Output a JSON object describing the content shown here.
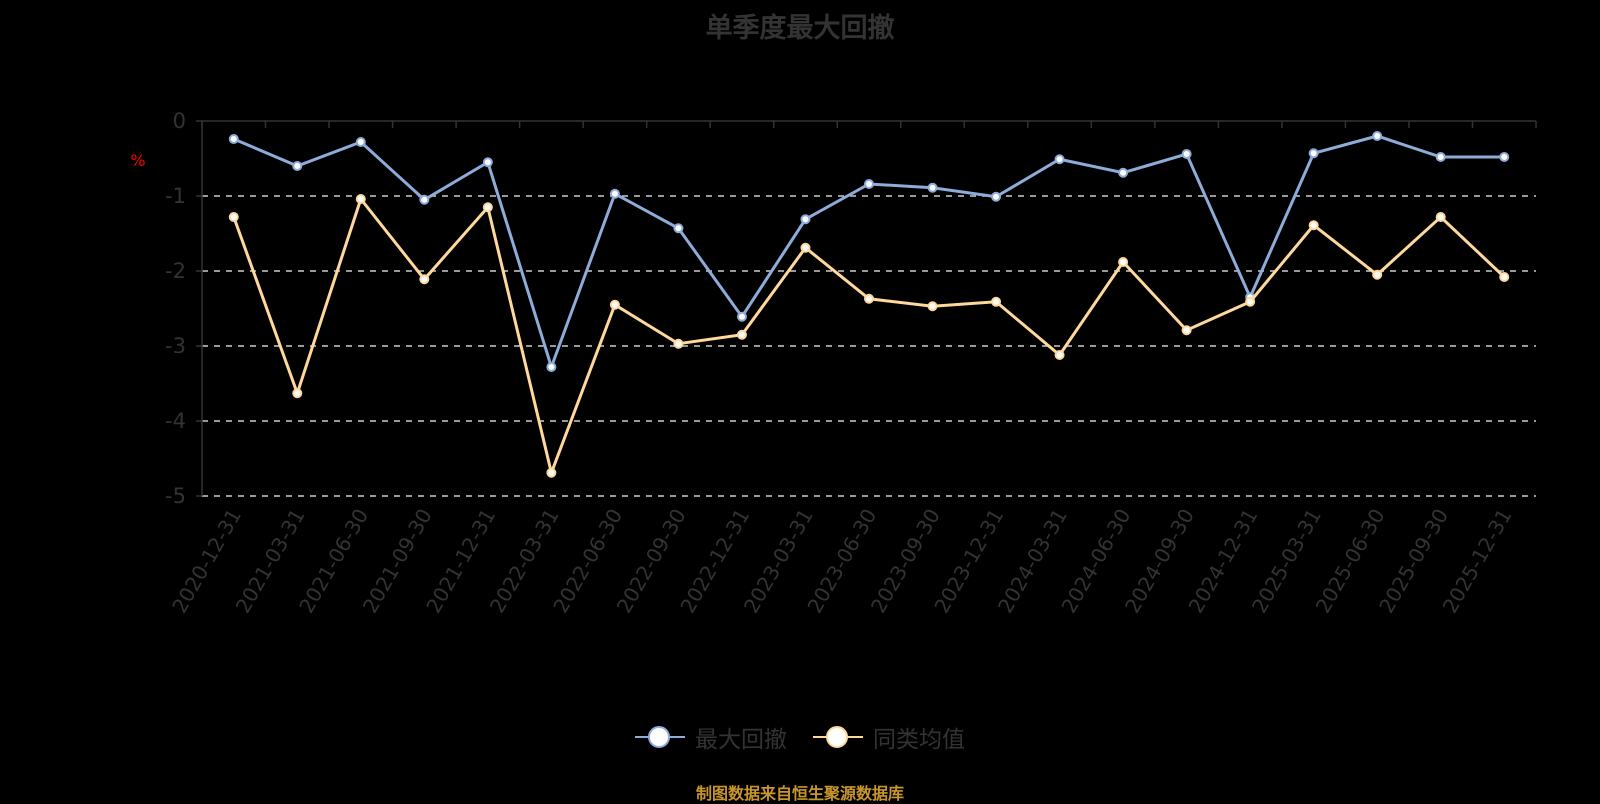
{
  "title": "单季度最大回撤",
  "y_unit": "%",
  "legend": [
    {
      "name": "最大回撤",
      "color": "#8eacd9"
    },
    {
      "name": "同类均值",
      "color": "#ffd89c"
    }
  ],
  "footer": "制图数据来自恒生聚源数据库",
  "colors": {
    "axis": "#333333",
    "grid": "#cccccc",
    "unit": "#ff0000",
    "footer": "#c8962a"
  },
  "chart_data": {
    "type": "line",
    "title": "单季度最大回撤",
    "xlabel": "",
    "ylabel": "%",
    "ylim": [
      -5,
      0
    ],
    "yticks": [
      0,
      -1,
      -2,
      -3,
      -4,
      -5
    ],
    "grid": true,
    "legend_position": "bottom",
    "categories": [
      "2020-12-31",
      "2021-03-31",
      "2021-06-30",
      "2021-09-30",
      "2021-12-31",
      "2022-03-31",
      "2022-06-30",
      "2022-09-30",
      "2022-12-31",
      "2023-03-31",
      "2023-06-30",
      "2023-09-30",
      "2023-12-31",
      "2024-03-31",
      "2024-06-30",
      "2024-09-30",
      "2024-12-31",
      "2025-03-31",
      "2025-06-30",
      "2025-09-30",
      "2025-12-31"
    ],
    "series": [
      {
        "name": "最大回撤",
        "values": [
          -0.24,
          -0.6,
          -0.28,
          -1.05,
          -0.55,
          -3.28,
          -0.97,
          -1.43,
          -2.61,
          -1.31,
          -0.84,
          -0.89,
          -1.01,
          -0.51,
          -0.69,
          -0.44,
          -2.35,
          -0.43,
          -0.2,
          -0.48,
          -0.48
        ]
      },
      {
        "name": "同类均值",
        "values": [
          -1.28,
          -3.63,
          -1.04,
          -2.11,
          -1.15,
          -4.69,
          -2.45,
          -2.97,
          -2.85,
          -1.69,
          -2.37,
          -2.47,
          -2.41,
          -3.12,
          -1.88,
          -2.79,
          -2.41,
          -1.39,
          -2.05,
          -1.28,
          -2.08
        ]
      }
    ]
  }
}
